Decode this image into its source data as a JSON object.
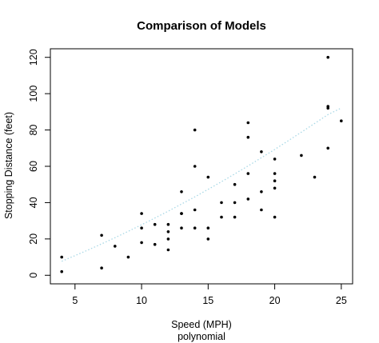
{
  "chart_data": {
    "type": "scatter",
    "title": "Comparison of Models",
    "xlabel": "Speed (MPH)",
    "subtitle": "polynomial",
    "ylabel": "Stopping Distance (feet)",
    "xlim": [
      3.15,
      25.85
    ],
    "ylim": [
      -4.72,
      124.72
    ],
    "xticks": [
      5,
      10,
      15,
      20,
      25
    ],
    "yticks": [
      0,
      20,
      40,
      60,
      80,
      100,
      120
    ],
    "grid": false,
    "colors": {
      "points": "#000000",
      "fit_line": "#a8d8e6"
    },
    "points": {
      "x": [
        4,
        4,
        7,
        7,
        8,
        9,
        10,
        10,
        10,
        11,
        11,
        12,
        12,
        12,
        12,
        13,
        13,
        13,
        13,
        14,
        14,
        14,
        14,
        15,
        15,
        15,
        16,
        16,
        17,
        17,
        17,
        18,
        18,
        18,
        18,
        19,
        19,
        19,
        20,
        20,
        20,
        20,
        20,
        22,
        23,
        24,
        24,
        24,
        24,
        25
      ],
      "y": [
        2,
        10,
        4,
        22,
        16,
        10,
        18,
        26,
        34,
        17,
        28,
        14,
        20,
        24,
        28,
        26,
        34,
        34,
        46,
        26,
        36,
        60,
        80,
        20,
        26,
        54,
        32,
        40,
        32,
        40,
        50,
        42,
        56,
        76,
        84,
        36,
        46,
        68,
        32,
        48,
        52,
        56,
        64,
        66,
        54,
        70,
        92,
        93,
        120,
        85
      ]
    },
    "fit": {
      "name": "polynomial",
      "style": "dotted",
      "x": [
        4,
        5,
        6,
        7,
        8,
        9,
        10,
        11,
        12,
        13,
        14,
        15,
        16,
        17,
        18,
        19,
        20,
        21,
        22,
        23,
        24,
        25
      ],
      "y": [
        7.7,
        10.8,
        14.0,
        17.3,
        20.7,
        24.2,
        27.8,
        31.5,
        35.3,
        39.2,
        43.2,
        47.3,
        51.5,
        55.8,
        60.2,
        64.7,
        69.3,
        74.0,
        78.8,
        83.6,
        88.5,
        92.1
      ]
    }
  }
}
